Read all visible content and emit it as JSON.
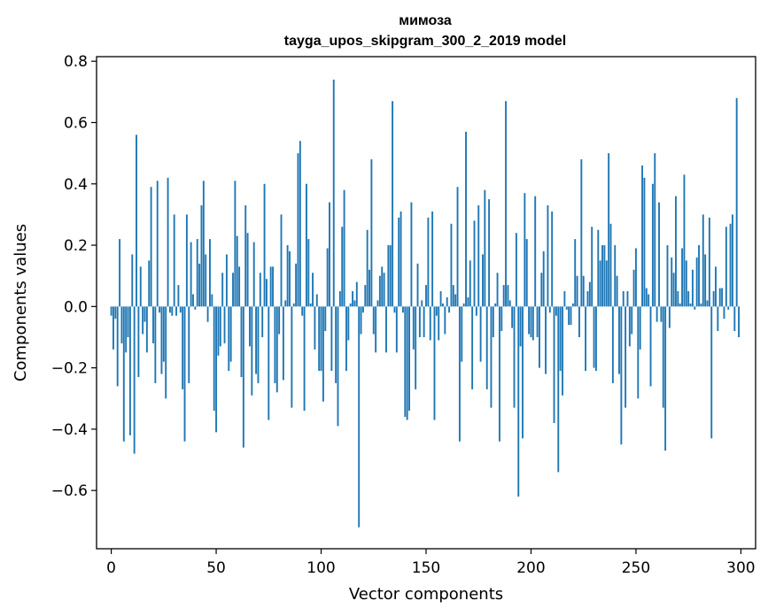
{
  "chart_data": {
    "type": "bar",
    "title": "мимоза",
    "subtitle": "tayga_upos_skipgram_300_2_2019 model",
    "xlabel": "Vector components",
    "ylabel": "Components values",
    "xlim": [
      -7,
      307
    ],
    "ylim": [
      -0.79,
      0.815
    ],
    "xticks": [
      0,
      50,
      100,
      150,
      200,
      250,
      300
    ],
    "xtick_labels": [
      "0",
      "50",
      "100",
      "150",
      "200",
      "250",
      "300"
    ],
    "yticks": [
      -0.6,
      -0.4,
      -0.2,
      0.0,
      0.2,
      0.4,
      0.6,
      0.8
    ],
    "ytick_labels": [
      "−0.6",
      "−0.4",
      "−0.2",
      "0.0",
      "0.2",
      "0.4",
      "0.6",
      "0.8"
    ],
    "grid": false,
    "color": "#1f77b4",
    "x_start": 0,
    "values": [
      -0.03,
      -0.14,
      -0.04,
      -0.26,
      0.22,
      -0.12,
      -0.44,
      -0.15,
      -0.1,
      -0.42,
      0.17,
      -0.48,
      0.56,
      -0.23,
      0.13,
      -0.09,
      -0.05,
      -0.15,
      0.15,
      0.39,
      -0.12,
      -0.25,
      0.41,
      -0.02,
      -0.22,
      -0.18,
      -0.3,
      0.42,
      -0.02,
      -0.03,
      0.3,
      -0.03,
      0.07,
      -0.02,
      -0.27,
      -0.44,
      0.3,
      -0.25,
      0.21,
      0.04,
      -0.01,
      0.22,
      0.14,
      0.33,
      0.41,
      0.17,
      -0.05,
      0.22,
      0.04,
      -0.34,
      -0.41,
      -0.16,
      -0.13,
      0.11,
      -0.12,
      0.17,
      -0.21,
      -0.18,
      0.11,
      0.41,
      0.23,
      0.13,
      -0.23,
      -0.46,
      0.33,
      0.24,
      -0.13,
      -0.29,
      0.21,
      -0.22,
      -0.25,
      0.11,
      -0.1,
      0.4,
      0.09,
      -0.37,
      0.13,
      0.13,
      -0.25,
      -0.28,
      -0.09,
      0.3,
      -0.24,
      0.02,
      0.2,
      0.18,
      -0.33,
      0.01,
      0.14,
      0.5,
      0.54,
      -0.03,
      -0.34,
      0.4,
      0.22,
      0.01,
      0.11,
      -0.14,
      0.04,
      -0.21,
      -0.21,
      -0.31,
      -0.08,
      0.19,
      0.34,
      -0.21,
      0.74,
      -0.25,
      -0.39,
      0.05,
      0.26,
      0.38,
      -0.21,
      -0.11,
      0.01,
      0.05,
      0.02,
      0.08,
      -0.72,
      -0.09,
      -0.02,
      0.07,
      0.25,
      0.12,
      0.48,
      -0.09,
      -0.15,
      0.02,
      0.1,
      0.13,
      0.11,
      -0.15,
      0.2,
      0.2,
      0.67,
      -0.02,
      -0.15,
      0.29,
      0.31,
      -0.02,
      -0.36,
      -0.37,
      -0.34,
      0.34,
      -0.14,
      -0.27,
      0.14,
      -0.1,
      0.02,
      -0.1,
      0.07,
      0.29,
      -0.11,
      0.31,
      -0.37,
      -0.03,
      -0.11,
      0.05,
      0.01,
      -0.09,
      0.03,
      -0.02,
      0.27,
      0.07,
      0.04,
      0.39,
      -0.44,
      -0.18,
      0.01,
      0.57,
      0.03,
      0.15,
      -0.27,
      0.28,
      -0.03,
      0.33,
      -0.18,
      0.17,
      0.38,
      -0.27,
      0.35,
      -0.33,
      -0.1,
      0.01,
      0.11,
      -0.44,
      -0.08,
      0.07,
      0.67,
      0.07,
      0.02,
      -0.07,
      -0.33,
      0.24,
      -0.62,
      -0.13,
      -0.43,
      0.37,
      0.22,
      -0.09,
      -0.1,
      -0.11,
      0.36,
      -0.1,
      -0.2,
      0.11,
      0.18,
      -0.22,
      0.33,
      -0.02,
      0.31,
      -0.38,
      -0.03,
      -0.54,
      -0.21,
      -0.29,
      0.05,
      -0.01,
      -0.06,
      -0.06,
      0.01,
      0.22,
      0.1,
      -0.1,
      0.48,
      0.1,
      -0.21,
      0.05,
      0.08,
      0.26,
      -0.2,
      -0.21,
      0.25,
      0.15,
      0.2,
      0.2,
      0.15,
      0.5,
      0.27,
      -0.25,
      0.2,
      0.1,
      -0.22,
      -0.45,
      0.05,
      -0.33,
      0.05,
      -0.13,
      -0.09,
      0.12,
      0.19,
      -0.3,
      -0.14,
      0.46,
      0.42,
      0.06,
      0.04,
      -0.26,
      0.4,
      0.5,
      -0.05,
      0.34,
      -0.05,
      -0.33,
      -0.47,
      0.2,
      -0.07,
      0.16,
      0.11,
      0.36,
      0.05,
      0.01,
      0.19,
      0.43,
      0.15,
      0.05,
      0.01,
      0.12,
      -0.01,
      0.16,
      0.2,
      0.01,
      0.3,
      0.17,
      0.02,
      0.29,
      -0.43,
      0.05,
      0.13,
      -0.08,
      0.06,
      0.06,
      -0.04,
      0.26,
      -0.01,
      0.27,
      0.3,
      -0.08,
      0.68,
      -0.1
    ]
  }
}
